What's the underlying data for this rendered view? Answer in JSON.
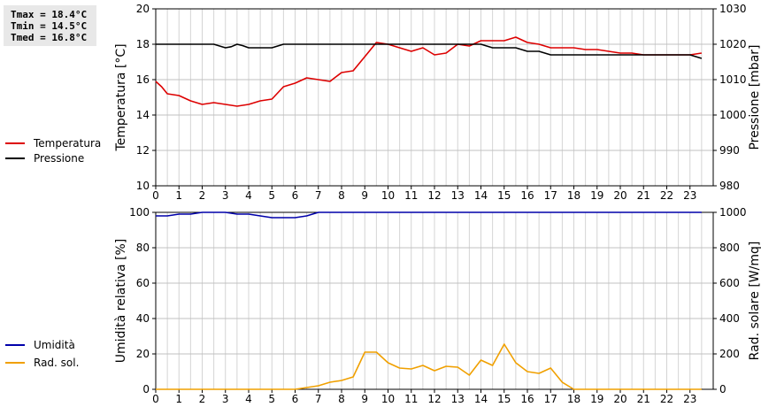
{
  "stats": {
    "tmax": "Tmax = 18.4°C",
    "tmin": "Tmin = 14.5°C",
    "tmed": "Tmed = 16.8°C"
  },
  "legend_top": [
    {
      "label": "Temperatura",
      "color": "#dd0000"
    },
    {
      "label": "Pressione",
      "color": "#000000"
    }
  ],
  "legend_bottom": [
    {
      "label": "Umidità",
      "color": "#0000aa"
    },
    {
      "label": "Rad. sol.",
      "color": "#f0a000"
    }
  ],
  "chart_data": [
    {
      "type": "line",
      "ylabel_left": "Temperatura [°C]",
      "ylabel_right": "Pressione [mbar]",
      "xlim": [
        0,
        24
      ],
      "x_ticks": [
        "0",
        "1",
        "2",
        "3",
        "4",
        "5",
        "6",
        "7",
        "8",
        "9",
        "10",
        "11",
        "12",
        "13",
        "14",
        "15",
        "16",
        "17",
        "18",
        "19",
        "20",
        "21",
        "22",
        "23"
      ],
      "ylim_left": [
        10,
        20
      ],
      "yticks_left": [
        "10",
        "12",
        "14",
        "16",
        "18",
        "20"
      ],
      "ylim_right": [
        980,
        1030
      ],
      "yticks_right": [
        "980",
        "990",
        "1000",
        "1010",
        "1020",
        "1030"
      ],
      "grid": true,
      "series": [
        {
          "name": "Temperatura",
          "axis": "left",
          "color": "#dd0000",
          "x": [
            0,
            0.25,
            0.5,
            1,
            1.5,
            2,
            2.5,
            3,
            3.5,
            4,
            4.5,
            5,
            5.5,
            6,
            6.5,
            7,
            7.5,
            8,
            8.5,
            9,
            9.5,
            10,
            10.5,
            11,
            11.5,
            12,
            12.5,
            13,
            13.5,
            14,
            14.5,
            15,
            15.5,
            16,
            16.5,
            17,
            17.5,
            18,
            18.5,
            19,
            19.5,
            20,
            20.5,
            21,
            21.5,
            22,
            22.5,
            23,
            23.5
          ],
          "y": [
            15.9,
            15.6,
            15.2,
            15.1,
            14.8,
            14.6,
            14.7,
            14.6,
            14.5,
            14.6,
            14.8,
            14.9,
            15.6,
            15.8,
            16.1,
            16.0,
            15.9,
            16.4,
            16.5,
            17.3,
            18.1,
            18.0,
            17.8,
            17.6,
            17.8,
            17.4,
            17.5,
            18.0,
            17.9,
            18.2,
            18.2,
            18.2,
            18.4,
            18.1,
            18.0,
            17.8,
            17.8,
            17.8,
            17.7,
            17.7,
            17.6,
            17.5,
            17.5,
            17.4,
            17.4,
            17.4,
            17.4,
            17.4,
            17.5
          ]
        },
        {
          "name": "Pressione",
          "axis": "right",
          "color": "#000000",
          "x": [
            0,
            0.5,
            1,
            1.5,
            2,
            2.5,
            3,
            3.25,
            3.5,
            3.75,
            4,
            4.5,
            5,
            5.5,
            6,
            6.5,
            7,
            7.5,
            8,
            8.5,
            9,
            9.5,
            10,
            10.5,
            11,
            11.5,
            12,
            12.5,
            13,
            13.5,
            14,
            14.5,
            15,
            15.5,
            16,
            16.5,
            17,
            17.5,
            18,
            18.5,
            19,
            19.5,
            20,
            20.5,
            21,
            21.5,
            22,
            22.5,
            23,
            23.5
          ],
          "y": [
            1020,
            1020,
            1020,
            1020,
            1020,
            1020,
            1019,
            1019.3,
            1020,
            1019.6,
            1019,
            1019,
            1019,
            1020,
            1020,
            1020,
            1020,
            1020,
            1020,
            1020,
            1020,
            1020,
            1020,
            1020,
            1020,
            1020,
            1020,
            1020,
            1020,
            1020,
            1020,
            1019,
            1019,
            1019,
            1018,
            1018,
            1017,
            1017,
            1017,
            1017,
            1017,
            1017,
            1017,
            1017,
            1017,
            1017,
            1017,
            1017,
            1017,
            1016
          ]
        }
      ]
    },
    {
      "type": "line",
      "ylabel_left": "Umidità relativa [%]",
      "ylabel_right": "Rad. solare [W/mq]",
      "xlim": [
        0,
        24
      ],
      "x_ticks": [
        "0",
        "1",
        "2",
        "3",
        "4",
        "5",
        "6",
        "7",
        "8",
        "9",
        "10",
        "11",
        "12",
        "13",
        "14",
        "15",
        "16",
        "17",
        "18",
        "19",
        "20",
        "21",
        "22",
        "23"
      ],
      "ylim_left": [
        0,
        100
      ],
      "yticks_left": [
        "0",
        "20",
        "40",
        "60",
        "80",
        "100"
      ],
      "ylim_right": [
        0,
        1000
      ],
      "yticks_right": [
        "0",
        "200",
        "400",
        "600",
        "800",
        "1000"
      ],
      "grid": true,
      "series": [
        {
          "name": "Umidità",
          "axis": "left",
          "color": "#0000aa",
          "x": [
            0,
            0.5,
            1,
            1.5,
            2,
            2.5,
            3,
            3.5,
            4,
            4.5,
            5,
            5.5,
            6,
            6.5,
            7,
            7.5,
            8,
            9,
            10,
            11,
            12,
            13,
            14,
            15,
            16,
            17,
            18,
            19,
            20,
            21,
            22,
            23,
            23.5
          ],
          "y": [
            98,
            98,
            99,
            99,
            100,
            100,
            100,
            99,
            99,
            98,
            97,
            97,
            97,
            98,
            100,
            100,
            100,
            100,
            100,
            100,
            100,
            100,
            100,
            100,
            100,
            100,
            100,
            100,
            100,
            100,
            100,
            100,
            100
          ]
        },
        {
          "name": "Rad. sol.",
          "axis": "right",
          "color": "#f0a000",
          "x": [
            0,
            1,
            2,
            3,
            4,
            5,
            6,
            6.5,
            7,
            7.5,
            8,
            8.5,
            9,
            9.5,
            10,
            10.5,
            11,
            11.5,
            12,
            12.5,
            13,
            13.5,
            14,
            14.5,
            15,
            15.5,
            16,
            16.5,
            17,
            17.5,
            18,
            18.5,
            19,
            20,
            21,
            22,
            23,
            23.5
          ],
          "y": [
            0,
            0,
            0,
            0,
            0,
            0,
            0,
            10,
            20,
            40,
            50,
            70,
            210,
            210,
            150,
            120,
            115,
            135,
            105,
            130,
            125,
            80,
            165,
            135,
            255,
            150,
            100,
            90,
            120,
            40,
            0,
            0,
            0,
            0,
            0,
            0,
            0,
            0
          ]
        }
      ]
    }
  ]
}
